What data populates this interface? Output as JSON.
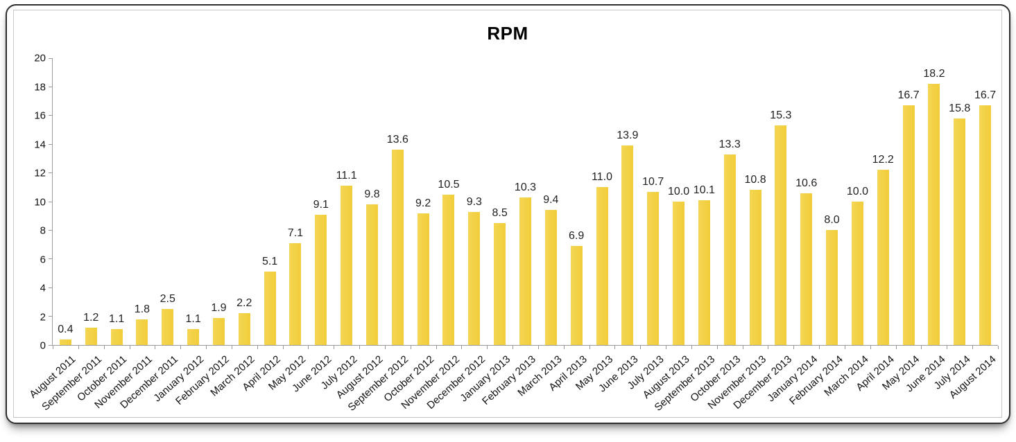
{
  "chart_data": {
    "type": "bar",
    "title": "RPM",
    "categories": [
      "August 2011",
      "September 2011",
      "October 2011",
      "November 2011",
      "December 2011",
      "January 2012",
      "February 2012",
      "March 2012",
      "April 2012",
      "May 2012",
      "June 2012",
      "July 2012",
      "August 2012",
      "September 2012",
      "October 2012",
      "November 2012",
      "December 2012",
      "January 2013",
      "February 2013",
      "March 2013",
      "April 2013",
      "May 2013",
      "June 2013",
      "July 2013",
      "August 2013",
      "September 2013",
      "October 2013",
      "November 2013",
      "December 2013",
      "January 2014",
      "February 2014",
      "March 2014",
      "April 2014",
      "May 2014",
      "June 2014",
      "July 2014",
      "August 2014"
    ],
    "values": [
      0.4,
      1.2,
      1.1,
      1.8,
      2.5,
      1.1,
      1.9,
      2.2,
      5.1,
      7.1,
      9.1,
      11.1,
      9.8,
      13.6,
      9.2,
      10.5,
      9.3,
      8.5,
      10.3,
      9.4,
      6.9,
      11.0,
      13.9,
      10.7,
      10.0,
      10.1,
      13.3,
      10.8,
      15.3,
      10.6,
      8.0,
      10.0,
      12.2,
      16.7,
      18.2,
      15.8,
      16.7
    ],
    "value_labels_shown": true,
    "xlabel": "",
    "ylabel": "",
    "ylim": [
      0,
      20
    ],
    "y_ticks": [
      0,
      2,
      4,
      6,
      8,
      10,
      12,
      14,
      16,
      18,
      20
    ],
    "grid": false,
    "legend_position": "none",
    "bar_color": "#F2D045",
    "axis_color": "#9A9A9A",
    "text_color": "#111111"
  }
}
